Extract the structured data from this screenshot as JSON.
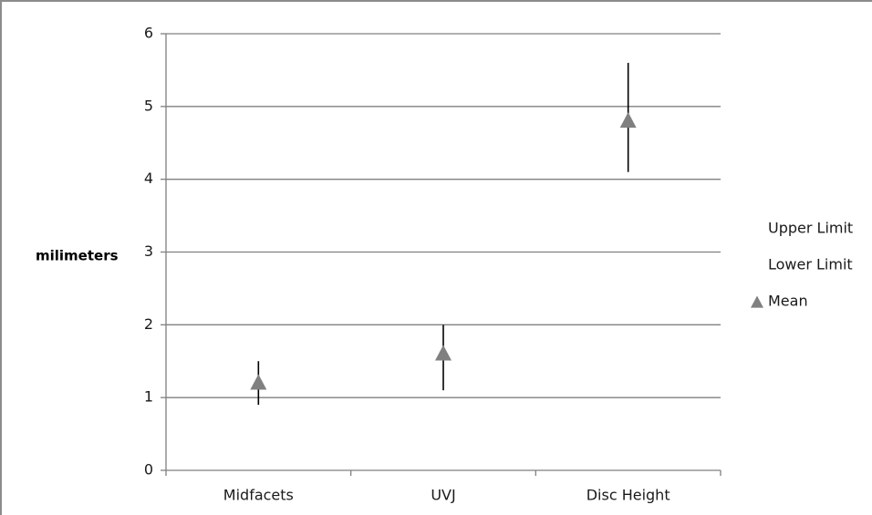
{
  "chart_data": {
    "type": "stock",
    "categories": [
      "Midfacets",
      "UVJ",
      "Disc Height"
    ],
    "series": [
      {
        "name": "Upper Limit",
        "values": [
          1.5,
          2.0,
          5.6
        ],
        "color": "#000000",
        "marker": "none"
      },
      {
        "name": "Lower Limit",
        "values": [
          0.9,
          1.1,
          4.1
        ],
        "color": "#000000",
        "marker": "none"
      },
      {
        "name": "Mean",
        "values": [
          1.2,
          1.6,
          4.8
        ],
        "color": "#808080",
        "marker": "triangle"
      }
    ],
    "ylabel": "milimeters",
    "xlabel": "",
    "title": "",
    "ylim": [
      0,
      6
    ],
    "yticks": [
      0,
      1,
      2,
      3,
      4,
      5,
      6
    ],
    "grid": true,
    "legend": "right",
    "colors": {
      "gridline": "#808080",
      "axis": "#808080",
      "range_line": "#000000",
      "mean_marker": "#808080"
    }
  }
}
